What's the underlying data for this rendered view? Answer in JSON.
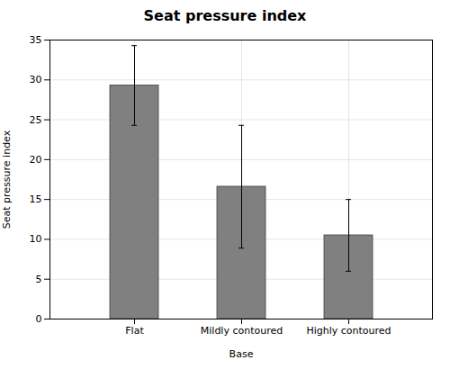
{
  "chart_data": {
    "type": "bar",
    "title": "Seat pressure index",
    "xlabel": "Base",
    "ylabel": "Seat pressure index",
    "categories": [
      "Flat",
      "Mildly contoured",
      "Highly contoured"
    ],
    "values": [
      29.3,
      16.6,
      10.5
    ],
    "errors": [
      5.0,
      7.7,
      4.5
    ],
    "color": "#808080",
    "ylim": [
      0,
      35
    ],
    "yticks": [
      0,
      5,
      10,
      15,
      20,
      25,
      30,
      35
    ],
    "grid": true
  }
}
